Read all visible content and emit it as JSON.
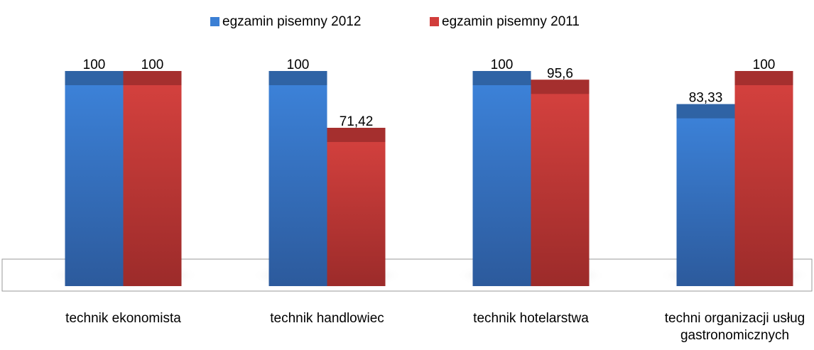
{
  "chart_data": {
    "type": "bar",
    "categories": [
      "technik ekonomista",
      "technik handlowiec",
      "technik hotelarstwa",
      "techni organizacji usług gastronomicznych"
    ],
    "series": [
      {
        "name": "egzamin pisemny 2012",
        "color": "#3b7fd4",
        "values": [
          100,
          100,
          100,
          83.33
        ],
        "value_labels": [
          "100",
          "100",
          "100",
          "83,33"
        ]
      },
      {
        "name": "egzamin pisemny 2011",
        "color": "#d13d3b",
        "values": [
          100,
          71.42,
          95.6,
          100
        ],
        "value_labels": [
          "100",
          "71,42",
          "95,6",
          "100"
        ]
      }
    ],
    "legend": "top"
  }
}
